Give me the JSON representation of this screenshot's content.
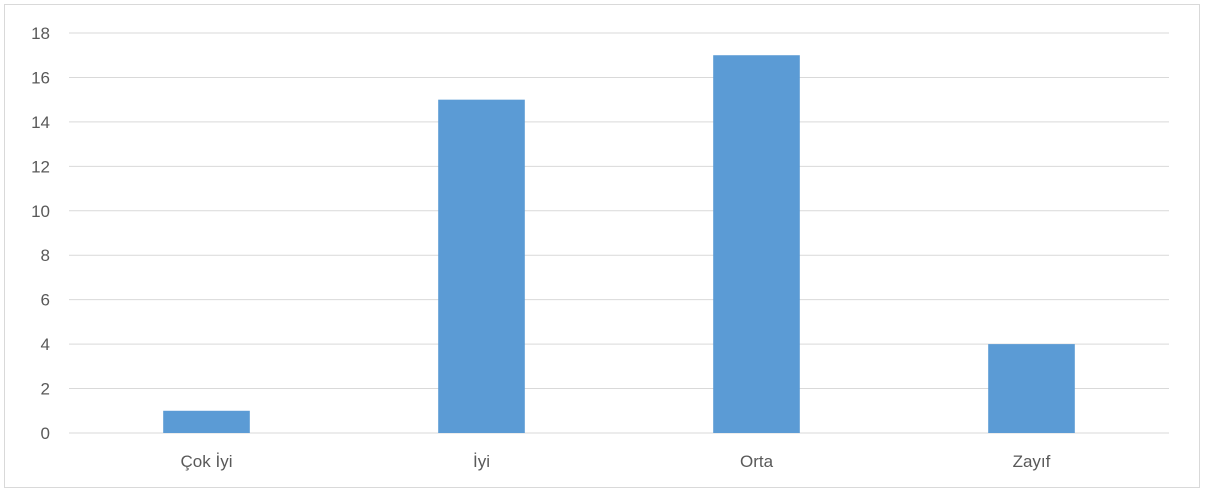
{
  "chart_data": {
    "type": "bar",
    "title": "",
    "xlabel": "",
    "ylabel": "",
    "categories": [
      "Çok İyi",
      "İyi",
      "Orta",
      "Zayıf"
    ],
    "values": [
      1,
      15,
      17,
      4
    ],
    "ylim": [
      0,
      18
    ],
    "y_ticks": [
      0,
      2,
      4,
      6,
      8,
      10,
      12,
      14,
      16,
      18
    ],
    "grid": true,
    "legend": "none",
    "bar_color": "#5b9bd5",
    "grid_color": "#d9d9d9",
    "label_color": "#595959"
  }
}
